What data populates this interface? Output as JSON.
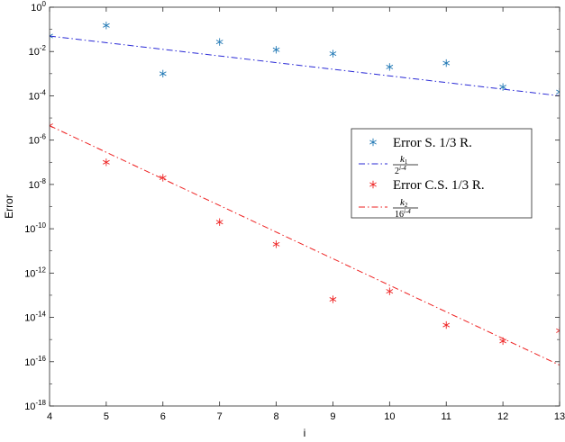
{
  "chart_data": {
    "type": "scatter",
    "xlabel": "i",
    "ylabel": "Error",
    "xlim": [
      4,
      13
    ],
    "ylim_log10": [
      -18,
      0
    ],
    "y_scale": "log",
    "x_ticks": [
      4,
      5,
      6,
      7,
      8,
      9,
      10,
      11,
      12,
      13
    ],
    "y_ticks": [
      {
        "exp": 0,
        "base": "10",
        "sup": "0"
      },
      {
        "exp": -2,
        "base": "10",
        "sup": "-2"
      },
      {
        "exp": -4,
        "base": "10",
        "sup": "-4"
      },
      {
        "exp": -6,
        "base": "10",
        "sup": "-6"
      },
      {
        "exp": -8,
        "base": "10",
        "sup": "-8"
      },
      {
        "exp": -10,
        "base": "10",
        "sup": "-10"
      },
      {
        "exp": -12,
        "base": "10",
        "sup": "-12"
      },
      {
        "exp": -14,
        "base": "10",
        "sup": "-14"
      },
      {
        "exp": -16,
        "base": "10",
        "sup": "-16"
      },
      {
        "exp": -18,
        "base": "10",
        "sup": "-18"
      }
    ],
    "grid": false,
    "legend_position": "right",
    "series": [
      {
        "name": "Error S. 1/3 R.",
        "kind": "scatter",
        "marker": "asterisk",
        "color": "#1f77b4",
        "x": [
          4,
          5,
          6,
          7,
          8,
          9,
          10,
          11,
          12,
          13
        ],
        "y": [
          0.05,
          0.15,
          0.001,
          0.027,
          0.012,
          0.008,
          0.002,
          0.003,
          0.00025,
          0.00015
        ]
      },
      {
        "name": "k1/2^(i-4)",
        "kind": "line",
        "dash": "dashdot",
        "color": "#2a2ad6",
        "x": [
          4,
          13
        ],
        "y": [
          0.05,
          0.0001
        ]
      },
      {
        "name": "Error C.S. 1/3 R.",
        "kind": "scatter",
        "marker": "asterisk",
        "color": "#ee2222",
        "x": [
          4,
          5,
          6,
          7,
          8,
          9,
          10,
          11,
          12,
          13
        ],
        "y": [
          4.5e-06,
          1e-07,
          2e-08,
          2e-10,
          2e-11,
          6.5e-14,
          1.5e-13,
          4.5e-15,
          8.5e-16,
          2.5e-15
        ]
      },
      {
        "name": "k2/16^(i-4)",
        "kind": "line",
        "dash": "dashdot",
        "color": "#ee2222",
        "x": [
          4,
          13
        ],
        "y": [
          4.5e-06,
          7e-17
        ]
      }
    ],
    "legend": {
      "entries": [
        {
          "label": "Error S. 1/3 R."
        },
        {
          "num": "k",
          "num_sub": "1",
          "den": "2",
          "den_sup": "i-4"
        },
        {
          "label": "Error C.S. 1/3 R."
        },
        {
          "num": "k",
          "num_sub": "2",
          "den": "16",
          "den_sup": "i-4"
        }
      ]
    }
  }
}
